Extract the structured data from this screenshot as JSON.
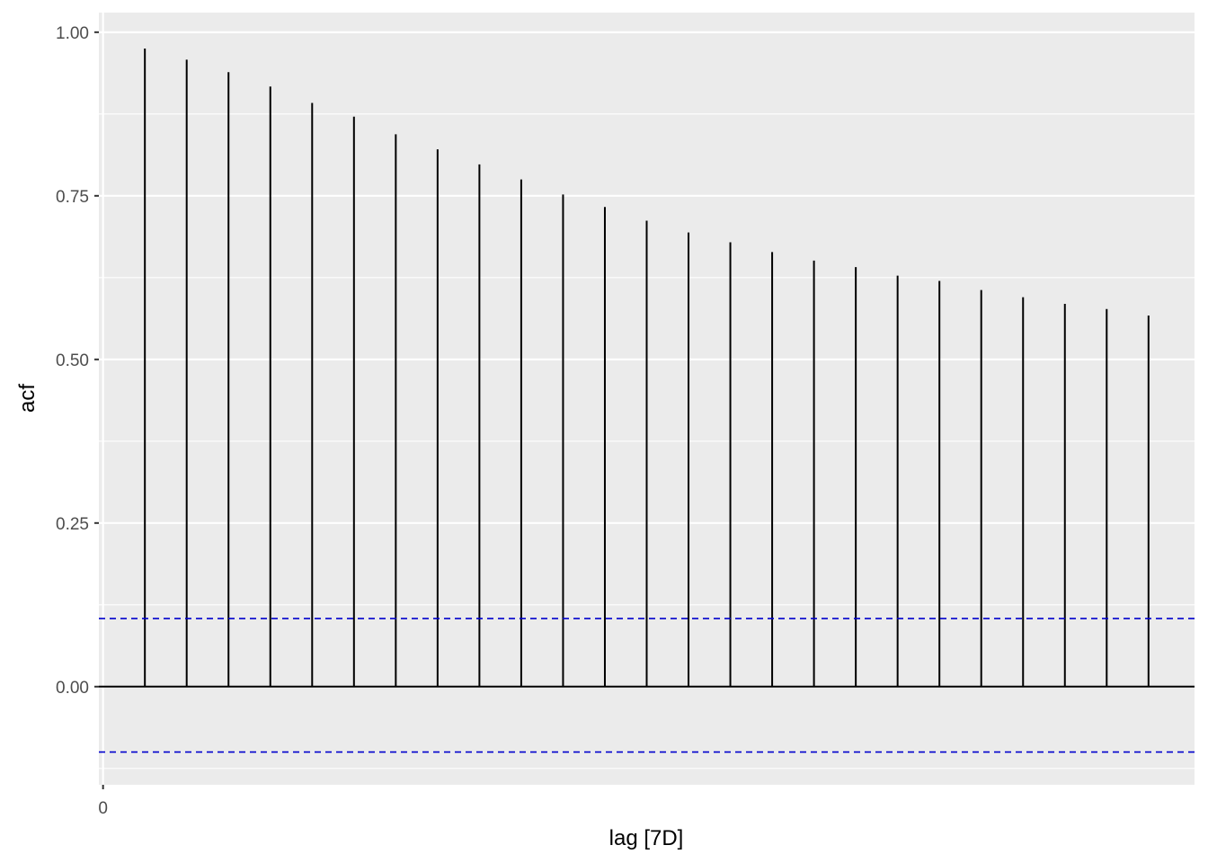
{
  "chart_data": {
    "type": "bar",
    "subtype": "acf-lollipop",
    "xlabel": "lag [7D]",
    "ylabel": "acf",
    "x_ticks": [
      0
    ],
    "y_ticks": [
      0.0,
      0.25,
      0.5,
      0.75,
      1.0
    ],
    "y_tick_labels": [
      "0.00",
      "0.25",
      "0.50",
      "0.75",
      "1.00"
    ],
    "xlim": [
      -0.1,
      26.1
    ],
    "ylim": [
      -0.15,
      1.03
    ],
    "lags": [
      1,
      2,
      3,
      4,
      5,
      6,
      7,
      8,
      9,
      10,
      11,
      12,
      13,
      14,
      15,
      16,
      17,
      18,
      19,
      20,
      21,
      22,
      23,
      24,
      25
    ],
    "values": [
      0.975,
      0.958,
      0.939,
      0.917,
      0.892,
      0.871,
      0.844,
      0.821,
      0.798,
      0.775,
      0.752,
      0.733,
      0.712,
      0.694,
      0.679,
      0.664,
      0.651,
      0.641,
      0.628,
      0.62,
      0.606,
      0.595,
      0.585,
      0.577,
      0.567
    ],
    "confidence_bounds": [
      0.104,
      -0.1
    ],
    "colors": {
      "panel_background": "#ebebeb",
      "grid": "#ffffff",
      "bars": "#000000",
      "confidence_lines": "#0000cc",
      "zero_line": "#000000",
      "tick_text": "#4d4d4d"
    },
    "grid": true,
    "legend": "none"
  }
}
